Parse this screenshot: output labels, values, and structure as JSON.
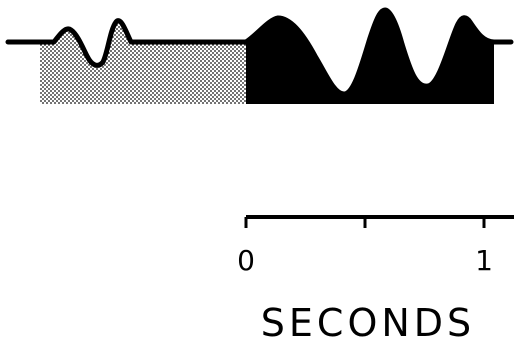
{
  "colors": {
    "ink": "#000000",
    "stipple": "#000000",
    "background": "#ffffff"
  },
  "time_axis": {
    "label": "SECONDS",
    "ticks": [
      {
        "value": 0,
        "label": "0"
      },
      {
        "value": 0.5,
        "label": ""
      },
      {
        "value": 1,
        "label": "1"
      }
    ]
  }
}
